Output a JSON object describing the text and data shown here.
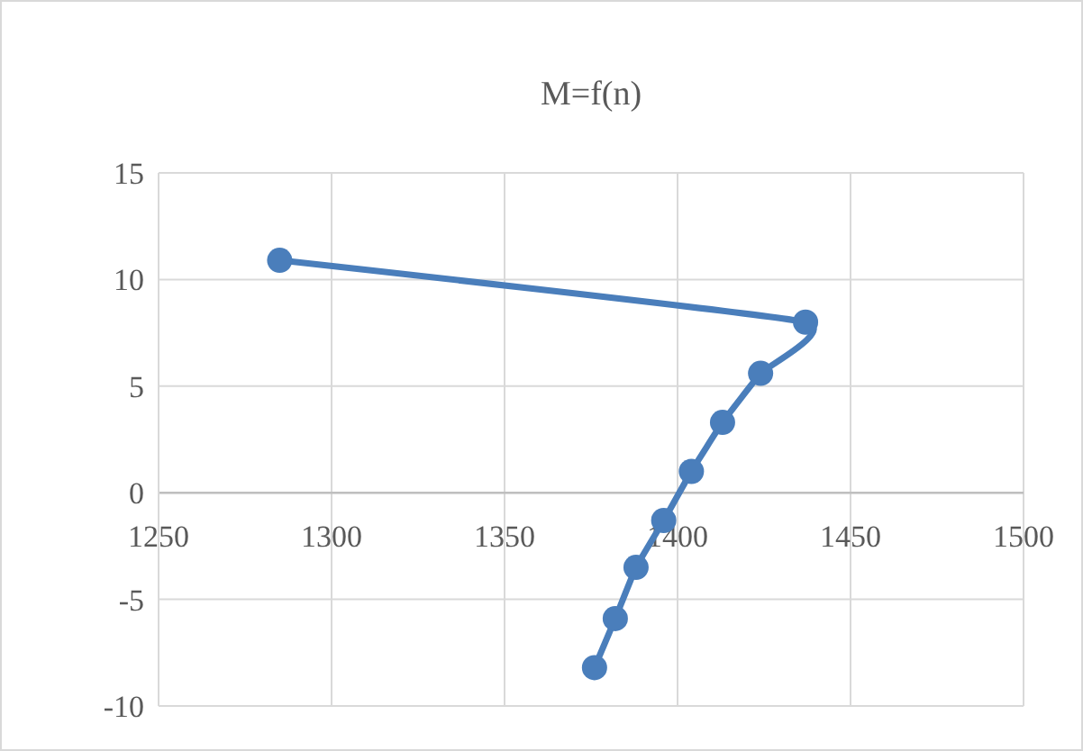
{
  "chart_data": {
    "type": "line",
    "title": "M=f(n)",
    "x": [
      1285,
      1437,
      1424,
      1413,
      1404,
      1396,
      1388,
      1382,
      1376
    ],
    "series": [
      {
        "color": "#4a7ebb",
        "values": [
          10.9,
          8.0,
          5.6,
          3.3,
          1.0,
          -1.3,
          -3.5,
          -5.9,
          -8.2
        ]
      }
    ],
    "xlim": [
      1250,
      1500
    ],
    "xticks": [
      1250,
      1300,
      1350,
      1400,
      1450,
      1500
    ],
    "ylim": [
      -10,
      15
    ],
    "yticks": [
      -10,
      -5,
      0,
      5,
      10,
      15
    ],
    "grid": true,
    "marker": "circle",
    "line_style": "solid"
  }
}
